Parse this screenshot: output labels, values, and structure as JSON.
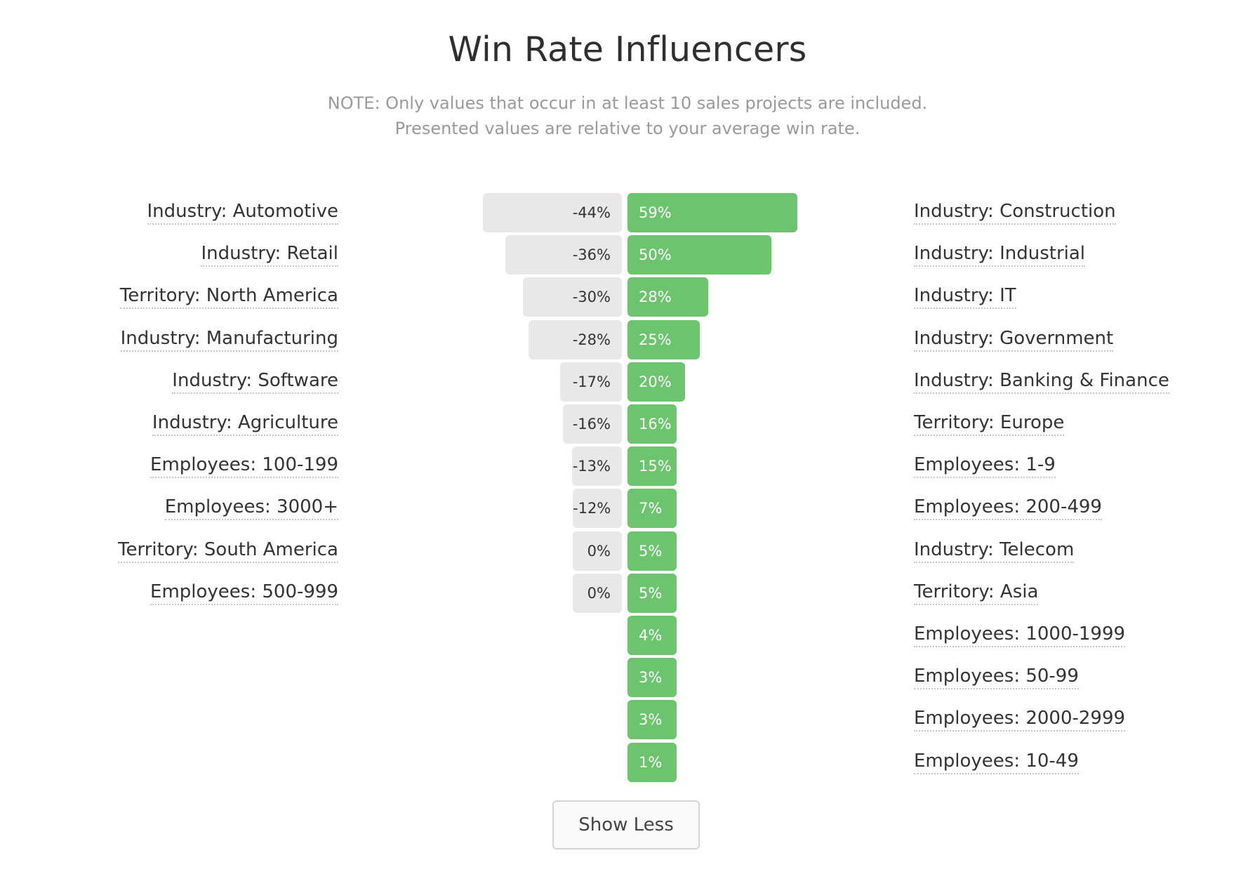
{
  "page": {
    "title": "Win Rate Influencers",
    "note_line1": "NOTE: Only values that occur in at least 10 sales projects are included.",
    "note_line2": "Presented values are relative to your average win rate.",
    "button_label": "Show Less"
  },
  "colors": {
    "positive_bar": "#6cc46f",
    "negative_bar": "#e8e8e8"
  },
  "chart_data": {
    "type": "bar",
    "title": "Win Rate Influencers",
    "negative": {
      "categories": [
        "Industry: Automotive",
        "Industry: Retail",
        "Territory: North America",
        "Industry: Manufacturing",
        "Industry: Software",
        "Industry: Agriculture",
        "Employees: 100-199",
        "Employees: 3000+",
        "Territory: South America",
        "Employees: 500-999"
      ],
      "values": [
        -44,
        -36,
        -30,
        -28,
        -17,
        -16,
        -13,
        -12,
        0,
        0
      ],
      "labels": [
        "-44%",
        "-36%",
        "-30%",
        "-28%",
        "-17%",
        "-16%",
        "-13%",
        "-12%",
        "0%",
        "0%"
      ]
    },
    "positive": {
      "categories": [
        "Industry: Construction",
        "Industry: Industrial",
        "Industry: IT",
        "Industry: Government",
        "Industry: Banking & Finance",
        "Territory: Europe",
        "Employees: 1-9",
        "Employees: 200-499",
        "Industry: Telecom",
        "Territory: Asia",
        "Employees: 1000-1999",
        "Employees: 50-99",
        "Employees: 2000-2999",
        "Employees: 10-49"
      ],
      "values": [
        59,
        50,
        28,
        25,
        20,
        16,
        15,
        7,
        5,
        5,
        4,
        3,
        3,
        1
      ],
      "labels": [
        "59%",
        "50%",
        "28%",
        "25%",
        "20%",
        "16%",
        "15%",
        "7%",
        "5%",
        "5%",
        "4%",
        "3%",
        "3%",
        "1%"
      ]
    }
  }
}
